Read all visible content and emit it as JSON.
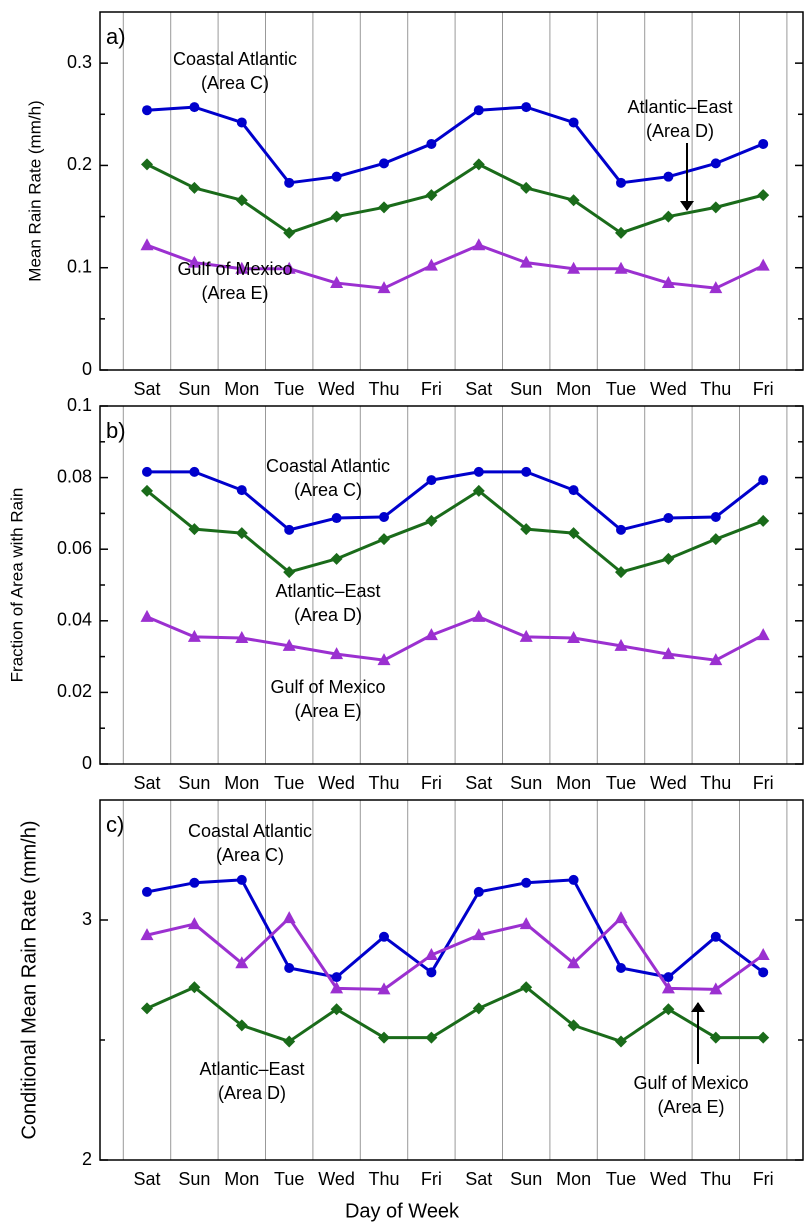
{
  "chart_data": [
    {
      "type": "line",
      "panel_label": "a)",
      "ylabel": "Mean Rain Rate  (mm/h)",
      "categories": [
        "Sat",
        "Sun",
        "Mon",
        "Tue",
        "Wed",
        "Thu",
        "Fri",
        "Sat",
        "Sun",
        "Mon",
        "Tue",
        "Wed",
        "Thu",
        "Fri"
      ],
      "ylim": [
        0,
        0.35
      ],
      "yticks": [
        0,
        0.1,
        0.2,
        0.3
      ],
      "minor_yticks": [
        0.05,
        0.15,
        0.25
      ],
      "grid": true,
      "series": [
        {
          "color": "#0000cc",
          "marker": "circle",
          "values": [
            0.254,
            0.257,
            0.242,
            0.183,
            0.189,
            0.202,
            0.221,
            0.254,
            0.257,
            0.242,
            0.183,
            0.189,
            0.202,
            0.221
          ]
        },
        {
          "color": "#1a6b1a",
          "marker": "diamond",
          "values": [
            0.201,
            0.178,
            0.166,
            0.134,
            0.15,
            0.159,
            0.171,
            0.201,
            0.178,
            0.166,
            0.134,
            0.15,
            0.159,
            0.171
          ]
        },
        {
          "color": "#9b30d0",
          "marker": "triangle",
          "values": [
            0.122,
            0.105,
            0.099,
            0.099,
            0.085,
            0.08,
            0.102,
            0.122,
            0.105,
            0.099,
            0.099,
            0.085,
            0.08,
            0.102
          ]
        }
      ],
      "annotations": [
        [
          "Coastal Atlantic",
          "(Area C)"
        ],
        [
          "Atlantic–East",
          "(Area D)"
        ],
        [
          "Gulf of Mexico",
          "(Area E)"
        ]
      ]
    },
    {
      "type": "line",
      "panel_label": "b)",
      "ylabel": "Fraction of Area with Rain",
      "categories": [
        "Sat",
        "Sun",
        "Mon",
        "Tue",
        "Wed",
        "Thu",
        "Fri",
        "Sat",
        "Sun",
        "Mon",
        "Tue",
        "Wed",
        "Thu",
        "Fri"
      ],
      "ylim": [
        0,
        0.1
      ],
      "yticks": [
        0,
        0.02,
        0.04,
        0.06,
        0.08,
        0.1
      ],
      "minor_yticks": [
        0.01,
        0.03,
        0.05,
        0.07,
        0.09
      ],
      "grid": true,
      "series": [
        {
          "color": "#0000cc",
          "marker": "circle",
          "values": [
            0.0816,
            0.0816,
            0.0765,
            0.0654,
            0.0687,
            0.069,
            0.0793,
            0.0816,
            0.0816,
            0.0765,
            0.0654,
            0.0687,
            0.069,
            0.0793
          ]
        },
        {
          "color": "#1a6b1a",
          "marker": "diamond",
          "values": [
            0.0763,
            0.0656,
            0.0645,
            0.0536,
            0.0573,
            0.0628,
            0.0679,
            0.0763,
            0.0656,
            0.0645,
            0.0536,
            0.0573,
            0.0628,
            0.0679
          ]
        },
        {
          "color": "#9b30d0",
          "marker": "triangle",
          "values": [
            0.0411,
            0.0355,
            0.0352,
            0.033,
            0.0307,
            0.029,
            0.036,
            0.0411,
            0.0355,
            0.0352,
            0.033,
            0.0307,
            0.029,
            0.036
          ]
        }
      ],
      "annotations": [
        [
          "Coastal Atlantic",
          "(Area C)"
        ],
        [
          "Atlantic–East",
          "(Area D)"
        ],
        [
          "Gulf of Mexico",
          "(Area E)"
        ]
      ]
    },
    {
      "type": "line",
      "panel_label": "c)",
      "ylabel": "Conditional Mean Rain Rate  (mm/h)",
      "xlabel": "Day of Week",
      "categories": [
        "Sat",
        "Sun",
        "Mon",
        "Tue",
        "Wed",
        "Thu",
        "Fri",
        "Sat",
        "Sun",
        "Mon",
        "Tue",
        "Wed",
        "Thu",
        "Fri"
      ],
      "ylim": [
        2,
        3.5
      ],
      "yticks": [
        2,
        3
      ],
      "minor_yticks": [
        2.5
      ],
      "grid": true,
      "series": [
        {
          "color": "#0000cc",
          "marker": "circle",
          "values": [
            3.117,
            3.155,
            3.167,
            2.8,
            2.762,
            2.93,
            2.782,
            3.117,
            3.155,
            3.167,
            2.8,
            2.762,
            2.93,
            2.782
          ]
        },
        {
          "color": "#9b30d0",
          "marker": "triangle",
          "values": [
            2.937,
            2.983,
            2.82,
            3.008,
            2.715,
            2.711,
            2.854,
            2.937,
            2.983,
            2.82,
            3.008,
            2.715,
            2.711,
            2.854
          ]
        },
        {
          "color": "#1a6b1a",
          "marker": "diamond",
          "values": [
            2.632,
            2.72,
            2.561,
            2.494,
            2.628,
            2.51,
            2.51,
            2.632,
            2.72,
            2.561,
            2.494,
            2.628,
            2.51,
            2.51
          ]
        }
      ],
      "annotations": [
        [
          "Coastal Atlantic",
          "(Area C)"
        ],
        [
          "Atlantic–East",
          "(Area D)"
        ],
        [
          "Gulf of Mexico",
          "(Area E)"
        ]
      ]
    }
  ]
}
